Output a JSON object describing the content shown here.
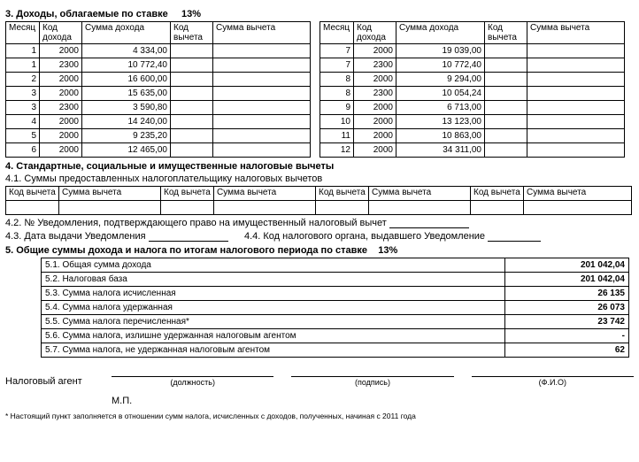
{
  "section3": {
    "title_prefix": "3. Доходы, облагаемые по ставке",
    "rate": "13%",
    "headers": {
      "month": "Месяц",
      "income_code": "Код дохода",
      "income_sum": "Сумма дохода",
      "ded_code": "Код вычета",
      "ded_sum": "Сумма вычета"
    },
    "left": [
      {
        "m": "1",
        "c": "2000",
        "s": "4 334,00"
      },
      {
        "m": "1",
        "c": "2300",
        "s": "10 772,40"
      },
      {
        "m": "2",
        "c": "2000",
        "s": "16 600,00"
      },
      {
        "m": "3",
        "c": "2000",
        "s": "15 635,00"
      },
      {
        "m": "3",
        "c": "2300",
        "s": "3 590,80"
      },
      {
        "m": "4",
        "c": "2000",
        "s": "14 240,00"
      },
      {
        "m": "5",
        "c": "2000",
        "s": "9 235,20"
      },
      {
        "m": "6",
        "c": "2000",
        "s": "12 465,00"
      }
    ],
    "right": [
      {
        "m": "7",
        "c": "2000",
        "s": "19 039,00"
      },
      {
        "m": "7",
        "c": "2300",
        "s": "10 772,40"
      },
      {
        "m": "8",
        "c": "2000",
        "s": "9 294,00"
      },
      {
        "m": "8",
        "c": "2300",
        "s": "10 054,24"
      },
      {
        "m": "9",
        "c": "2000",
        "s": "6 713,00"
      },
      {
        "m": "10",
        "c": "2000",
        "s": "13 123,00"
      },
      {
        "m": "11",
        "c": "2000",
        "s": "10 863,00"
      },
      {
        "m": "12",
        "c": "2000",
        "s": "34 311,00"
      }
    ]
  },
  "section4": {
    "title": "4. Стандартные, социальные и имущественные налоговые вычеты",
    "sub41": "4.1. Суммы предоставленных налогоплательщику налоговых вычетов",
    "hdr_code": "Код вычета",
    "hdr_sum": "Сумма вычета",
    "line42": "4.2. № Уведомления, подтверждающего право на имущественный налоговый вычет",
    "line43a": "4.3. Дата выдачи Уведомления",
    "line43b": "4.4. Код налогового органа, выдавшего Уведомление"
  },
  "section5": {
    "title_prefix": "5. Общие суммы дохода и налога по итогам налогового периода по ставке",
    "rate": "13%",
    "rows": [
      {
        "label": "5.1. Общая сумма дохода",
        "value": "201 042,04"
      },
      {
        "label": "5.2. Налоговая база",
        "value": "201 042,04"
      },
      {
        "label": "5.3. Сумма налога исчисленная",
        "value": "26 135"
      },
      {
        "label": "5.4. Сумма налога удержанная",
        "value": "26 073"
      },
      {
        "label": "5.5. Сумма налога перечисленная*",
        "value": "23 742"
      },
      {
        "label": "5.6. Сумма налога, излишне удержанная налоговым агентом",
        "value": "-"
      },
      {
        "label": "5.7. Сумма налога, не удержанная налоговым агентом",
        "value": "62"
      }
    ]
  },
  "agent": {
    "label": "Налоговый агент",
    "position": "(должность)",
    "signature": "(подпись)",
    "fio": "(Ф.И.О)",
    "mp": "М.П."
  },
  "footnote": "* Настоящий пункт заполняется в отношении сумм налога, исчисленных с доходов, полученных, начиная с 2011 года"
}
